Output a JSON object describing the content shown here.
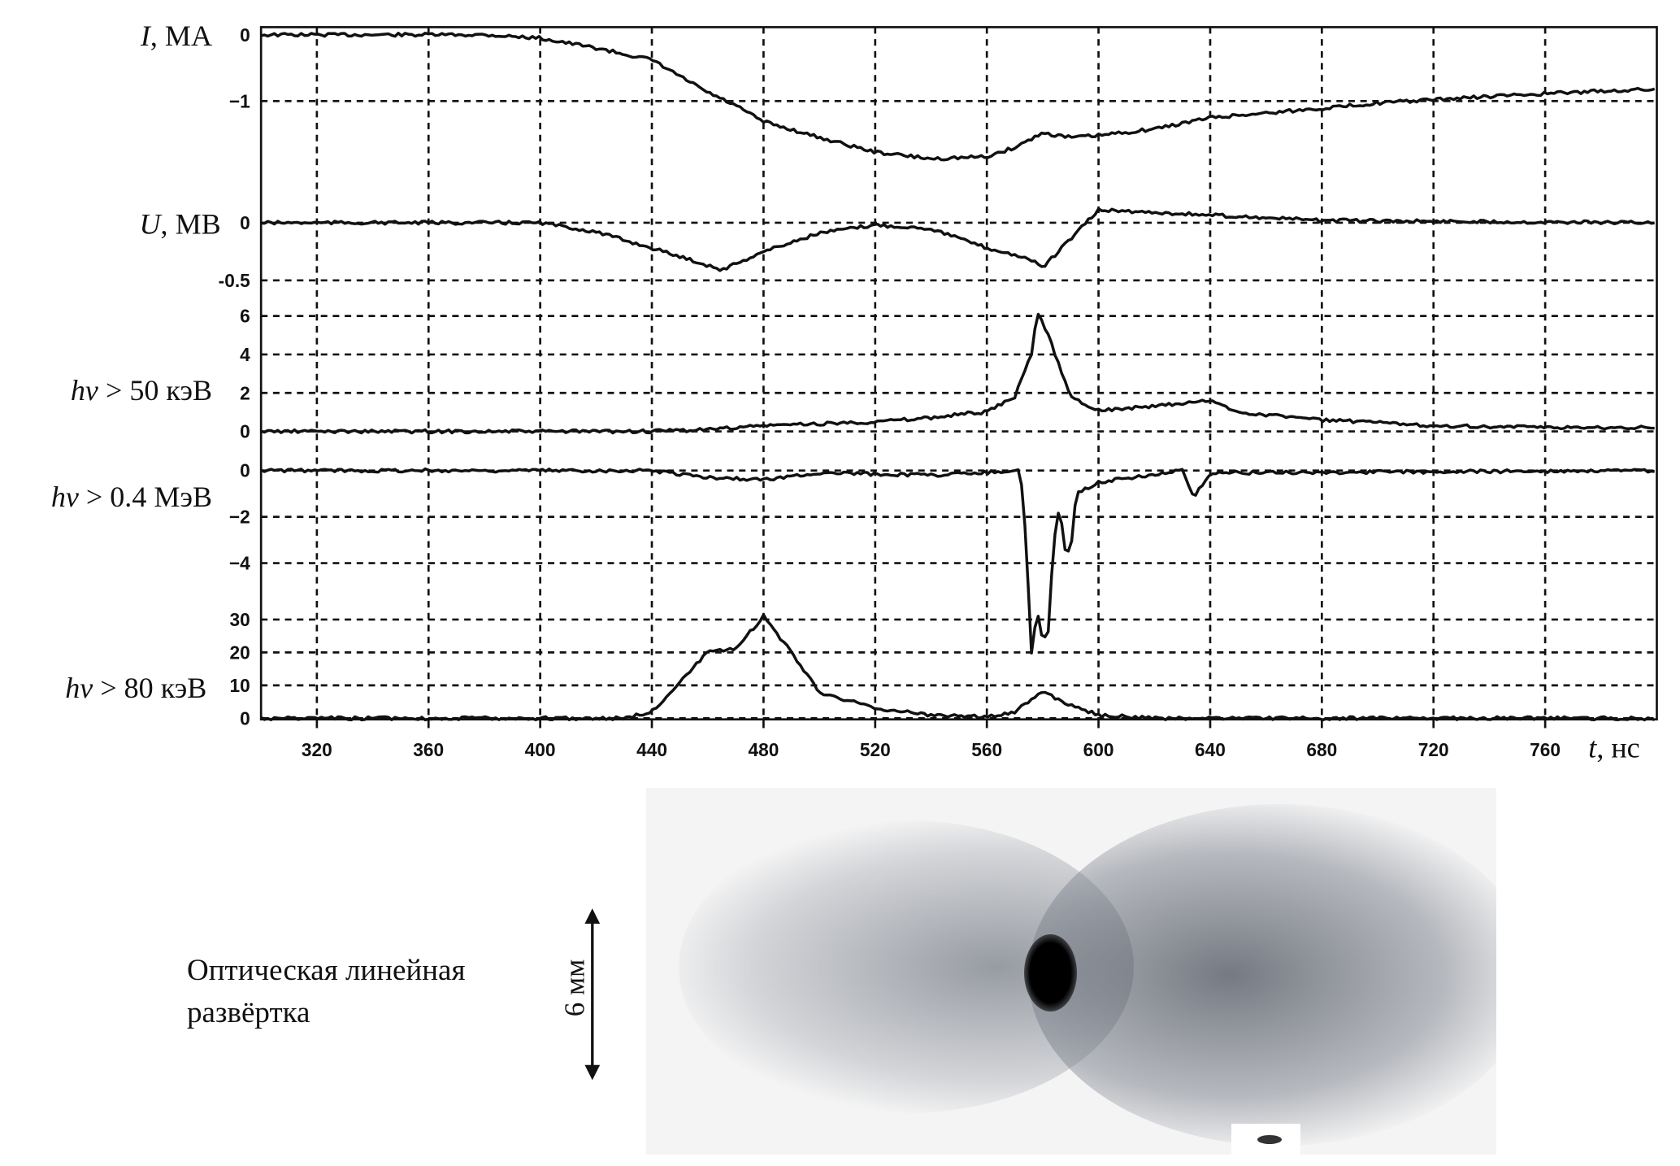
{
  "chart_data": {
    "type": "line",
    "xlabel_var": "t",
    "xlabel_unit": ", нс",
    "xlim": [
      300,
      800
    ],
    "xticks": [
      320,
      360,
      400,
      440,
      480,
      520,
      560,
      600,
      640,
      680,
      720,
      760
    ],
    "grid": true,
    "panels": [
      {
        "label_var": "I",
        "label_unit": ", МА",
        "yticks": [
          0,
          -1
        ],
        "ytick_labels": [
          "0",
          "−1"
        ],
        "x": [
          300,
          340,
          380,
          400,
          420,
          440,
          460,
          470,
          480,
          500,
          520,
          540,
          560,
          570,
          580,
          590,
          600,
          620,
          640,
          660,
          680,
          700,
          720,
          740,
          760,
          780,
          800
        ],
        "y": [
          0,
          0,
          0,
          -0.05,
          -0.2,
          -0.38,
          -0.87,
          -1.07,
          -1.31,
          -1.55,
          -1.77,
          -1.87,
          -1.84,
          -1.7,
          -1.48,
          -1.55,
          -1.52,
          -1.42,
          -1.25,
          -1.18,
          -1.11,
          -1.03,
          -0.98,
          -0.93,
          -0.89,
          -0.85,
          -0.82
        ]
      },
      {
        "label_var": "U",
        "label_unit": ", МВ",
        "yticks": [
          0,
          -0.5
        ],
        "ytick_labels": [
          "0",
          "-0.5"
        ],
        "x": [
          300,
          400,
          420,
          440,
          455,
          465,
          480,
          500,
          520,
          540,
          560,
          575,
          580,
          590,
          600,
          620,
          680,
          800
        ],
        "y": [
          0,
          0,
          -0.08,
          -0.22,
          -0.33,
          -0.41,
          -0.25,
          -0.09,
          -0.02,
          -0.05,
          -0.22,
          -0.31,
          -0.39,
          -0.14,
          0.11,
          0.09,
          0.02,
          0
        ]
      },
      {
        "label_var": "hν",
        "label_unit": " > 50 кэВ",
        "yticks": [
          6,
          4,
          2,
          0
        ],
        "ytick_labels": [
          "6",
          "4",
          "2",
          "0"
        ],
        "x": [
          300,
          440,
          460,
          480,
          500,
          520,
          540,
          550,
          560,
          570,
          576,
          578,
          582,
          590,
          600,
          620,
          640,
          650,
          680,
          720,
          760,
          800
        ],
        "y": [
          0,
          0,
          0.1,
          0.3,
          0.4,
          0.5,
          0.7,
          0.9,
          1.0,
          1.8,
          4.0,
          6.3,
          5.0,
          1.8,
          1.1,
          1.3,
          1.6,
          1.0,
          0.6,
          0.3,
          0.2,
          0.2
        ]
      },
      {
        "label_var": "hν",
        "label_unit": " > 0.4 МэВ",
        "yticks": [
          0,
          -2,
          -4
        ],
        "ytick_labels": [
          "0",
          "−2",
          "−4"
        ],
        "x": [
          300,
          440,
          460,
          480,
          500,
          540,
          572,
          574,
          576,
          578,
          580,
          582,
          584,
          586,
          588,
          590,
          592,
          600,
          630,
          634,
          640,
          800
        ],
        "y": [
          0,
          0,
          -0.3,
          -0.4,
          -0.1,
          -0.2,
          0,
          -3,
          -7.9,
          -6,
          -7.4,
          -7,
          -3,
          -1.5,
          -3.4,
          -3.5,
          -1,
          -0.5,
          0,
          -1.2,
          -0.1,
          0
        ]
      },
      {
        "label_var": "hν",
        "label_unit": " > 80 кэВ",
        "yticks": [
          30,
          20,
          10,
          0
        ],
        "ytick_labels": [
          "30",
          "20",
          "10",
          "0"
        ],
        "x": [
          300,
          430,
          440,
          450,
          460,
          470,
          480,
          490,
          500,
          520,
          540,
          560,
          570,
          580,
          590,
          600,
          620,
          800
        ],
        "y": [
          0,
          0,
          2,
          11,
          20,
          21,
          31,
          20,
          8,
          3,
          1,
          0.5,
          2,
          8,
          4,
          1,
          0,
          0
        ]
      }
    ]
  },
  "photo": {
    "caption_line1": "Оптическая линейная",
    "caption_line2": "развёртка",
    "scale_label": "6 мм"
  }
}
